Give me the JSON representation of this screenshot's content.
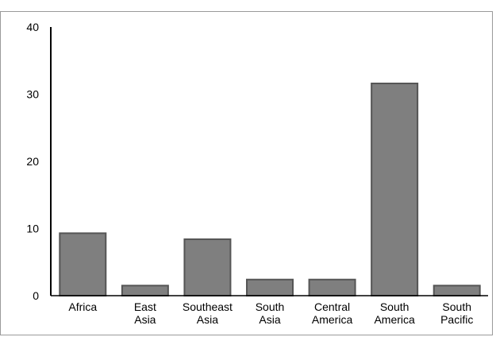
{
  "chart_data": {
    "type": "bar",
    "categories": [
      [
        "Africa"
      ],
      [
        "East",
        "Asia"
      ],
      [
        "Southeast",
        "Asia"
      ],
      [
        "South",
        "Asia"
      ],
      [
        "Central",
        "America"
      ],
      [
        "South",
        "America"
      ],
      [
        "South",
        "Pacific"
      ]
    ],
    "values": [
      9.3,
      1.5,
      8.4,
      2.4,
      2.4,
      31.6,
      1.5
    ],
    "ylim": [
      0,
      40
    ],
    "yticks": [
      0,
      10,
      20,
      30,
      40
    ],
    "grid": false,
    "bar_color": "#7f7f7f",
    "bar_edge_color": "#555555"
  }
}
